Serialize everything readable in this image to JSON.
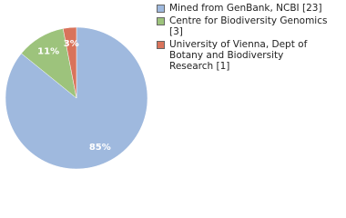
{
  "chart_data": {
    "type": "pie",
    "categories": [
      "Mined from GenBank, NCBI [23]",
      "Centre for Biodiversity Genomics [3]",
      "University of Vienna, Dept of Botany and Biodiversity Research [1]"
    ],
    "values": [
      85,
      11,
      3
    ],
    "value_labels": [
      "85%",
      "11%",
      "3%"
    ],
    "colors": [
      "#9fb9de",
      "#9dc37c",
      "#d9735b"
    ]
  }
}
